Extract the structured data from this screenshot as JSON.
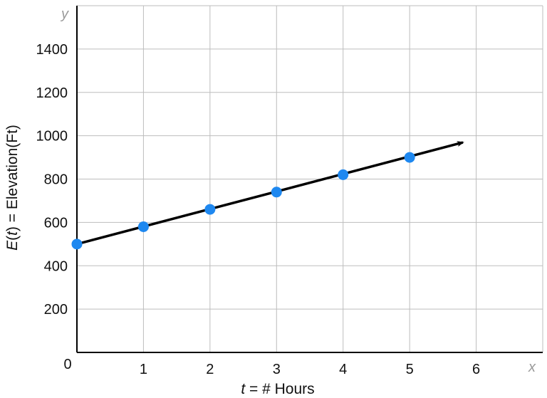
{
  "chart_data": {
    "type": "line",
    "x": [
      0,
      1,
      2,
      3,
      4,
      5
    ],
    "y": [
      500,
      580,
      660,
      740,
      820,
      900
    ],
    "xlim": [
      0,
      7
    ],
    "ylim": [
      0,
      1600
    ],
    "x_ticks": [
      "1",
      "2",
      "3",
      "4",
      "5",
      "6"
    ],
    "y_ticks": [
      "200",
      "400",
      "600",
      "800",
      "1000",
      "1200",
      "1400"
    ],
    "origin_label": "0",
    "x_var": "x",
    "y_var": "y",
    "xlabel": {
      "var": "t",
      "rest": " = # Hours"
    },
    "ylabel": {
      "fn": "E",
      "open": "(",
      "var": "t",
      "rest": ") = Elevation(Ft)"
    },
    "arrow_to": [
      5.8,
      969
    ],
    "grid": true,
    "colors": {
      "line": "#000000",
      "point": "#1e88f0",
      "grid": "#bdbdbd"
    }
  }
}
